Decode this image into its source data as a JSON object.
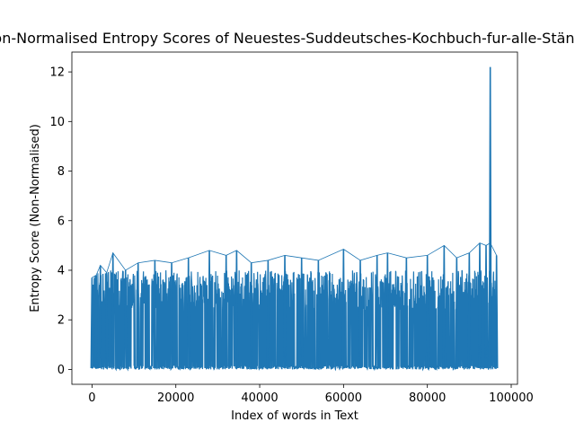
{
  "chart_data": {
    "type": "line",
    "title": "Non-Normalised Entropy Scores of Neuestes-Suddeutsches-Kochbuch-fur-alle-Stände",
    "xlabel": "Index of words in Text",
    "ylabel": "Entropy Score (Non-Normalised)",
    "xlim": [
      -4800,
      101500
    ],
    "ylim": [
      -0.6,
      12.8
    ],
    "x_ticks": [
      0,
      20000,
      40000,
      60000,
      80000,
      100000
    ],
    "x_tick_labels": [
      "0",
      "20000",
      "40000",
      "60000",
      "80000",
      "100000"
    ],
    "y_ticks": [
      0,
      2,
      4,
      6,
      8,
      10,
      12
    ],
    "y_tick_labels": [
      "0",
      "2",
      "4",
      "6",
      "8",
      "10",
      "12"
    ],
    "grid": false,
    "series": [
      {
        "color": "#1f77b4",
        "x_range": [
          0,
          96500
        ],
        "baseline_min": 0.0,
        "typical_max": 4.0,
        "envelope_peaks": [
          {
            "x": 0,
            "y": 3.7
          },
          {
            "x": 1000,
            "y": 3.8
          },
          {
            "x": 2000,
            "y": 4.2
          },
          {
            "x": 3500,
            "y": 3.9
          },
          {
            "x": 5000,
            "y": 4.7
          },
          {
            "x": 8000,
            "y": 4.0
          },
          {
            "x": 11000,
            "y": 4.3
          },
          {
            "x": 15000,
            "y": 4.4
          },
          {
            "x": 19000,
            "y": 4.3
          },
          {
            "x": 23000,
            "y": 4.5
          },
          {
            "x": 28000,
            "y": 4.8
          },
          {
            "x": 32000,
            "y": 4.6
          },
          {
            "x": 34500,
            "y": 4.8
          },
          {
            "x": 38000,
            "y": 4.3
          },
          {
            "x": 42000,
            "y": 4.4
          },
          {
            "x": 46000,
            "y": 4.6
          },
          {
            "x": 50000,
            "y": 4.5
          },
          {
            "x": 54000,
            "y": 4.4
          },
          {
            "x": 60000,
            "y": 4.85
          },
          {
            "x": 64000,
            "y": 4.4
          },
          {
            "x": 68000,
            "y": 4.6
          },
          {
            "x": 70500,
            "y": 4.7
          },
          {
            "x": 75000,
            "y": 4.5
          },
          {
            "x": 80000,
            "y": 4.6
          },
          {
            "x": 84000,
            "y": 5.0
          },
          {
            "x": 87000,
            "y": 4.5
          },
          {
            "x": 90000,
            "y": 4.7
          },
          {
            "x": 92500,
            "y": 5.1
          },
          {
            "x": 94000,
            "y": 5.0
          },
          {
            "x": 95000,
            "y": 12.2
          },
          {
            "x": 96500,
            "y": 4.6
          }
        ]
      }
    ]
  }
}
